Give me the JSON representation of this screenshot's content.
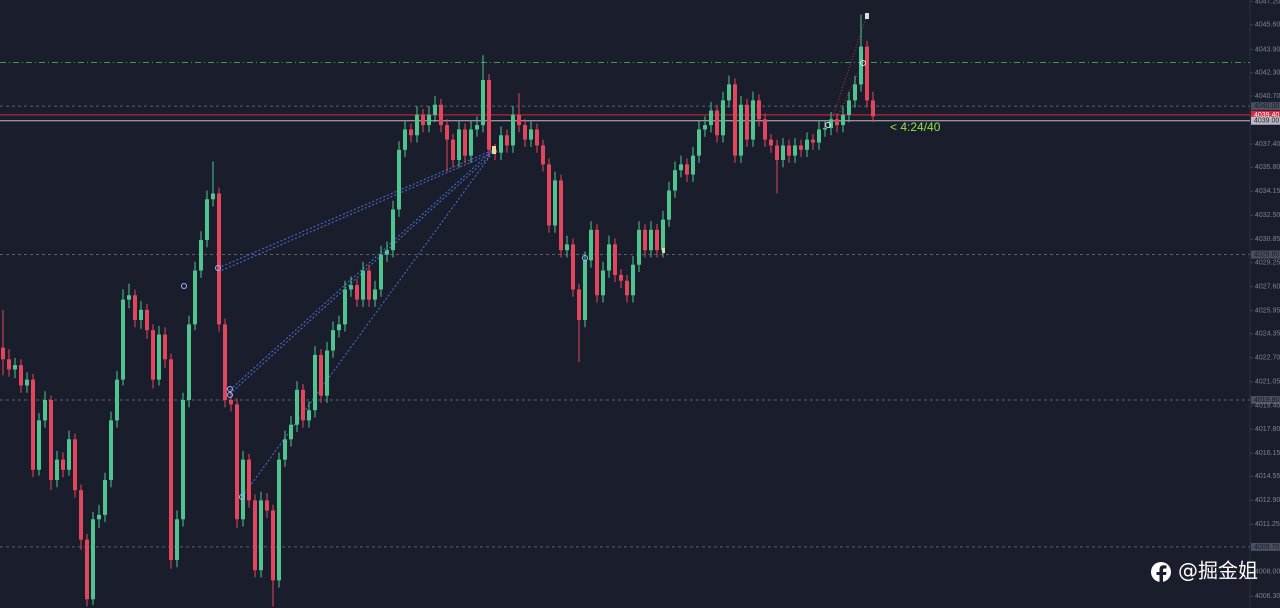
{
  "chart_data": {
    "type": "candlestick",
    "up_color": "#4fc48f",
    "down_color": "#e2465c",
    "ylim": [
      4005.5,
      4047.3
    ],
    "yticks": [
      {
        "value": 4047.2,
        "label": "4047.20"
      },
      {
        "value": 4045.6,
        "label": "4045.60"
      },
      {
        "value": 4043.9,
        "label": "4043.90"
      },
      {
        "value": 4042.3,
        "label": "4042.30"
      },
      {
        "value": 4040.7,
        "label": "4040.70"
      },
      {
        "value": 4037.4,
        "label": "4037.40"
      },
      {
        "value": 4035.8,
        "label": "4035.80"
      },
      4034.15,
      {
        "value": 4032.5,
        "label": "4032.50"
      },
      4030.85,
      4029.25,
      {
        "value": 4027.6,
        "label": "4027.60"
      },
      4025.95,
      4024.35,
      {
        "value": 4022.7,
        "label": "4022.70"
      },
      4021.05,
      {
        "value": 4019.4,
        "label": "4019.40"
      },
      {
        "value": 4017.8,
        "label": "4017.80"
      },
      4016.15,
      4014.55,
      {
        "value": 4012.9,
        "label": "4012.90"
      },
      4011.25,
      {
        "value": 4008.0,
        "label": "4008.00"
      },
      {
        "value": 4006.3,
        "label": "4006.30"
      }
    ],
    "levels": [
      {
        "value": 4043.0,
        "color": "#3f9a4a",
        "style": "dashdot"
      },
      {
        "value": 4040.0,
        "label": "4040.00",
        "color": "#5a6070",
        "style": "dashed"
      },
      {
        "value": 4039.4,
        "label": "4039.40",
        "color": "#d8283c",
        "style": "solid"
      },
      {
        "value": 4039.0,
        "label": "4039.00",
        "color": "#b9bcc6",
        "style": "solid"
      },
      {
        "value": 4029.8,
        "label": "4029.80",
        "color": "#5a6070",
        "style": "dashed"
      },
      {
        "value": 4019.8,
        "label": "4019.80",
        "color": "#5a6070",
        "style": "dashed"
      },
      {
        "value": 4009.7,
        "label": "4009.70",
        "color": "#5a6070",
        "style": "dashed"
      }
    ],
    "countdown": "< 4:24/40",
    "watermark": "@掘金姐",
    "candles": [
      [
        4023.4,
        4026.0,
        4021.5,
        4022.6
      ],
      [
        4022.6,
        4023.3,
        4021.4,
        4021.9
      ],
      [
        4021.9,
        4022.7,
        4021.3,
        4022.2
      ],
      [
        4022.2,
        4022.6,
        4020.3,
        4020.8
      ],
      [
        4020.8,
        4021.7,
        4020.3,
        4021.2
      ],
      [
        4021.2,
        4021.6,
        4014.5,
        4015.0
      ],
      [
        4015.0,
        4018.9,
        4014.6,
        4018.4
      ],
      [
        4018.4,
        4020.4,
        4017.9,
        4019.8
      ],
      [
        4019.8,
        4020.1,
        4013.6,
        4014.3
      ],
      [
        4014.3,
        4016.3,
        4013.8,
        4015.7
      ],
      [
        4015.7,
        4016.2,
        4014.5,
        4015.0
      ],
      [
        4015.0,
        4017.7,
        4014.6,
        4017.1
      ],
      [
        4017.1,
        4017.5,
        4013.1,
        4013.6
      ],
      [
        4013.6,
        4014.0,
        4009.5,
        4010.2
      ],
      [
        4010.2,
        4010.6,
        4005.6,
        4006.1
      ],
      [
        4006.1,
        4012.1,
        4005.7,
        4011.6
      ],
      [
        4011.6,
        4012.6,
        4011.0,
        4011.9
      ],
      [
        4011.9,
        4014.8,
        4011.4,
        4014.3
      ],
      [
        4014.3,
        4019.0,
        4013.8,
        4018.4
      ],
      [
        4018.4,
        4021.8,
        4017.9,
        4021.2
      ],
      [
        4021.2,
        4027.4,
        4020.8,
        4026.7
      ],
      [
        4026.7,
        4027.8,
        4026.1,
        4027.0
      ],
      [
        4027.0,
        4027.4,
        4024.8,
        4025.3
      ],
      [
        4025.3,
        4026.6,
        4024.7,
        4026.0
      ],
      [
        4026.0,
        4026.4,
        4024.0,
        4024.6
      ],
      [
        4024.6,
        4025.0,
        4020.6,
        4021.2
      ],
      [
        4021.2,
        4024.9,
        4020.8,
        4024.3
      ],
      [
        4024.3,
        4024.8,
        4022.0,
        4022.6
      ],
      [
        4022.6,
        4023.0,
        4008.2,
        4008.8
      ],
      [
        4008.8,
        4012.2,
        4008.3,
        4011.6
      ],
      [
        4011.6,
        4020.3,
        4011.1,
        4019.8
      ],
      [
        4019.8,
        4025.6,
        4019.3,
        4025.0
      ],
      [
        4025.0,
        4029.3,
        4024.6,
        4028.7
      ],
      [
        4028.7,
        4031.4,
        4028.2,
        4030.8
      ],
      [
        4030.8,
        4034.2,
        4030.3,
        4033.6
      ],
      [
        4033.6,
        4036.2,
        4033.1,
        4034.0
      ],
      [
        4034.0,
        4034.4,
        4024.5,
        4025.0
      ],
      [
        4025.0,
        4025.4,
        4019.3,
        4019.8
      ],
      [
        4019.8,
        4020.4,
        4019.0,
        4019.5
      ],
      [
        4019.5,
        4019.9,
        4011.0,
        4011.6
      ],
      [
        4011.6,
        4016.3,
        4011.1,
        4015.7
      ],
      [
        4015.7,
        4016.1,
        4012.4,
        4012.9
      ],
      [
        4012.9,
        4013.3,
        4007.6,
        4008.1
      ],
      [
        4008.1,
        4013.5,
        4007.6,
        4012.9
      ],
      [
        4012.9,
        4013.4,
        4011.7,
        4012.2
      ],
      [
        4012.2,
        4012.6,
        4005.6,
        4007.4
      ],
      [
        4007.4,
        4016.2,
        4006.9,
        4015.7
      ],
      [
        4015.7,
        4017.7,
        4015.2,
        4017.1
      ],
      [
        4017.1,
        4018.7,
        4016.6,
        4018.1
      ],
      [
        4018.1,
        4021.1,
        4017.6,
        4020.5
      ],
      [
        4020.5,
        4020.9,
        4017.9,
        4018.4
      ],
      [
        4018.4,
        4019.7,
        4017.9,
        4019.1
      ],
      [
        4019.1,
        4023.5,
        4018.6,
        4022.9
      ],
      [
        4022.9,
        4023.3,
        4019.6,
        4020.1
      ],
      [
        4020.1,
        4023.8,
        4019.6,
        4023.2
      ],
      [
        4023.2,
        4025.2,
        4022.7,
        4024.6
      ],
      [
        4024.6,
        4025.6,
        4024.1,
        4025.0
      ],
      [
        4025.0,
        4028.0,
        4024.5,
        4027.4
      ],
      [
        4027.4,
        4028.3,
        4026.9,
        4027.7
      ],
      [
        4027.7,
        4028.1,
        4026.2,
        4026.7
      ],
      [
        4026.7,
        4029.3,
        4026.2,
        4028.7
      ],
      [
        4028.7,
        4029.1,
        4026.2,
        4026.7
      ],
      [
        4026.7,
        4028.0,
        4026.2,
        4027.4
      ],
      [
        4027.4,
        4030.4,
        4026.9,
        4029.8
      ],
      [
        4029.8,
        4030.7,
        4029.3,
        4030.1
      ],
      [
        4030.1,
        4033.5,
        4029.6,
        4032.9
      ],
      [
        4032.9,
        4037.6,
        4032.4,
        4037.0
      ],
      [
        4037.0,
        4039.0,
        4036.5,
        4038.4
      ],
      [
        4038.4,
        4038.8,
        4037.5,
        4038.0
      ],
      [
        4038.0,
        4040.0,
        4037.5,
        4039.4
      ],
      [
        4039.4,
        4039.8,
        4038.2,
        4038.7
      ],
      [
        4038.7,
        4040.0,
        4038.2,
        4039.4
      ],
      [
        4039.4,
        4040.7,
        4038.9,
        4040.1
      ],
      [
        4040.1,
        4040.5,
        4038.2,
        4038.7
      ],
      [
        4038.7,
        4039.1,
        4035.5,
        4037.7
      ],
      [
        4037.7,
        4038.1,
        4035.8,
        4036.3
      ],
      [
        4036.3,
        4039.0,
        4035.8,
        4038.4
      ],
      [
        4038.4,
        4038.8,
        4036.1,
        4036.6
      ],
      [
        4036.6,
        4039.0,
        4036.1,
        4038.4
      ],
      [
        4038.4,
        4039.3,
        4037.9,
        4038.7
      ],
      [
        4038.7,
        4043.5,
        4038.2,
        4041.8
      ],
      [
        4041.8,
        4042.2,
        4036.5,
        4037.0
      ],
      [
        4037.0,
        4037.4,
        4036.3,
        4036.8
      ],
      [
        4036.8,
        4038.6,
        4036.3,
        4038.0
      ],
      [
        4038.0,
        4038.4,
        4036.8,
        4037.3
      ],
      [
        4037.3,
        4040.0,
        4036.8,
        4039.4
      ],
      [
        4039.4,
        4040.9,
        4038.2,
        4038.7
      ],
      [
        4038.7,
        4039.1,
        4037.2,
        4037.7
      ],
      [
        4037.7,
        4039.0,
        4037.2,
        4038.4
      ],
      [
        4038.4,
        4038.8,
        4036.8,
        4037.3
      ],
      [
        4037.3,
        4037.7,
        4035.5,
        4036.0
      ],
      [
        4036.0,
        4036.4,
        4031.3,
        4031.8
      ],
      [
        4031.8,
        4035.5,
        4031.3,
        4034.9
      ],
      [
        4034.9,
        4035.3,
        4029.6,
        4030.1
      ],
      [
        4030.1,
        4031.1,
        4029.6,
        4030.5
      ],
      [
        4030.5,
        4030.9,
        4026.9,
        4027.4
      ],
      [
        4027.4,
        4027.8,
        4022.4,
        4025.3
      ],
      [
        4025.3,
        4030.0,
        4024.8,
        4029.4
      ],
      [
        4029.4,
        4032.1,
        4028.9,
        4031.5
      ],
      [
        4031.5,
        4031.9,
        4026.5,
        4027.0
      ],
      [
        4027.0,
        4029.3,
        4026.5,
        4028.7
      ],
      [
        4028.7,
        4031.1,
        4028.2,
        4030.5
      ],
      [
        4030.5,
        4030.9,
        4027.9,
        4028.4
      ],
      [
        4028.4,
        4028.8,
        4027.5,
        4028.0
      ],
      [
        4028.0,
        4028.4,
        4026.5,
        4027.0
      ],
      [
        4027.0,
        4029.7,
        4026.5,
        4029.1
      ],
      [
        4029.1,
        4032.1,
        4028.6,
        4031.5
      ],
      [
        4031.5,
        4031.9,
        4029.6,
        4030.1
      ],
      [
        4030.1,
        4032.1,
        4029.6,
        4031.5
      ],
      [
        4031.5,
        4031.9,
        4029.6,
        4030.1
      ],
      [
        4030.1,
        4032.8,
        4029.6,
        4032.2
      ],
      [
        4032.2,
        4034.8,
        4031.7,
        4034.2
      ],
      [
        4034.2,
        4036.2,
        4033.7,
        4035.6
      ],
      [
        4035.6,
        4036.6,
        4035.1,
        4036.0
      ],
      [
        4036.0,
        4036.4,
        4034.8,
        4035.3
      ],
      [
        4035.3,
        4037.2,
        4034.8,
        4036.6
      ],
      [
        4036.6,
        4039.0,
        4036.1,
        4038.4
      ],
      [
        4038.4,
        4039.3,
        4037.9,
        4038.7
      ],
      [
        4038.7,
        4040.3,
        4038.2,
        4039.7
      ],
      [
        4039.7,
        4040.1,
        4037.5,
        4038.0
      ],
      [
        4038.0,
        4041.0,
        4037.5,
        4040.4
      ],
      [
        4040.4,
        4042.1,
        4039.9,
        4041.5
      ],
      [
        4041.5,
        4041.9,
        4036.1,
        4036.6
      ],
      [
        4036.6,
        4040.7,
        4036.1,
        4040.1
      ],
      [
        4040.1,
        4040.5,
        4037.2,
        4037.7
      ],
      [
        4037.7,
        4041.0,
        4037.2,
        4040.4
      ],
      [
        4040.4,
        4040.8,
        4038.6,
        4039.1
      ],
      [
        4039.1,
        4039.5,
        4037.2,
        4037.7
      ],
      [
        4037.7,
        4038.1,
        4036.8,
        4037.3
      ],
      [
        4037.3,
        4037.7,
        4034.0,
        4036.3
      ],
      [
        4036.3,
        4037.8,
        4035.8,
        4037.3
      ],
      [
        4037.3,
        4037.7,
        4036.1,
        4036.6
      ],
      [
        4036.6,
        4037.8,
        4036.1,
        4037.3
      ],
      [
        4037.3,
        4037.7,
        4036.5,
        4037.0
      ],
      [
        4037.0,
        4038.2,
        4036.5,
        4037.7
      ],
      [
        4037.7,
        4038.1,
        4037.0,
        4037.5
      ],
      [
        4037.5,
        4039.0,
        4037.0,
        4038.4
      ],
      [
        4038.4,
        4039.0,
        4037.9,
        4038.5
      ],
      [
        4038.5,
        4039.6,
        4038.0,
        4039.1
      ],
      [
        4039.1,
        4039.5,
        4038.2,
        4038.7
      ],
      [
        4038.7,
        4040.0,
        4038.2,
        4039.4
      ],
      [
        4039.4,
        4041.0,
        4038.9,
        4040.4
      ],
      [
        4040.4,
        4042.1,
        4039.9,
        4041.5
      ],
      [
        4041.5,
        4046.3,
        4041.0,
        4044.1
      ],
      [
        4044.1,
        4044.5,
        4039.9,
        4040.4
      ],
      [
        4040.4,
        4041.0,
        4038.9,
        4039.3
      ]
    ]
  }
}
